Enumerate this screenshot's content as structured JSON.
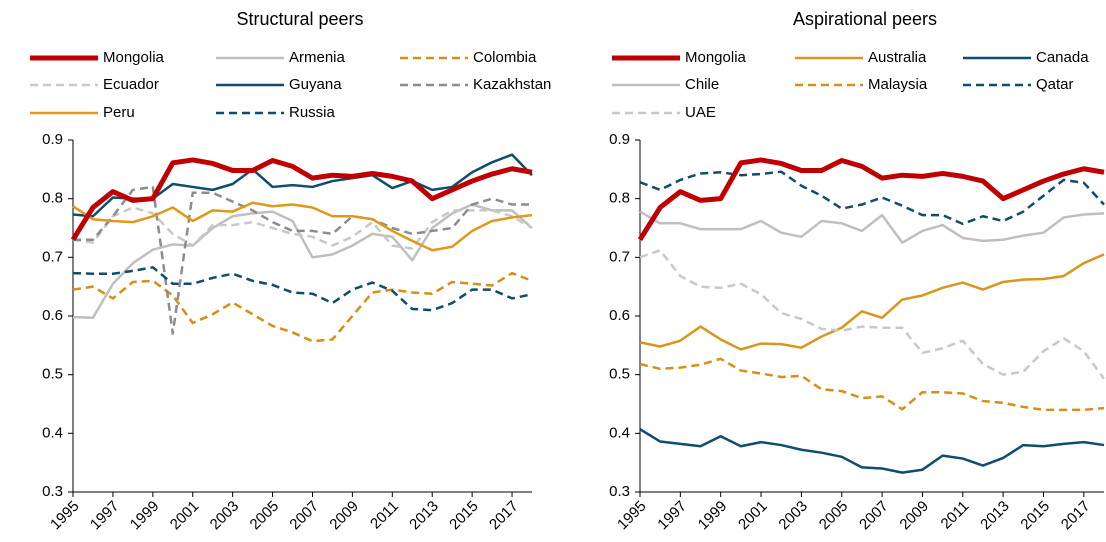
{
  "chart_data": [
    {
      "type": "line",
      "title": "Structural peers",
      "x": [
        1995,
        1996,
        1997,
        1998,
        1999,
        2000,
        2001,
        2002,
        2003,
        2004,
        2005,
        2006,
        2007,
        2008,
        2009,
        2010,
        2011,
        2012,
        2013,
        2014,
        2015,
        2016,
        2017,
        2018
      ],
      "xlim": [
        1995,
        2018
      ],
      "xticks": [
        1995,
        1997,
        1999,
        2001,
        2003,
        2005,
        2007,
        2009,
        2011,
        2013,
        2015,
        2017
      ],
      "ylim": [
        0.3,
        0.9
      ],
      "yticks": [
        0.3,
        0.4,
        0.5,
        0.6,
        0.7,
        0.8,
        0.9
      ],
      "series": [
        {
          "name": "Mongolia",
          "color": "#c00000",
          "dash": "solid",
          "linewidth": 5,
          "values": [
            0.73,
            0.785,
            0.812,
            0.797,
            0.8,
            0.861,
            0.866,
            0.86,
            0.848,
            0.848,
            0.865,
            0.855,
            0.835,
            0.84,
            0.838,
            0.843,
            0.838,
            0.83,
            0.8,
            0.815,
            0.83,
            0.842,
            0.851,
            0.845
          ]
        },
        {
          "name": "Armenia",
          "color": "#bfbfbf",
          "dash": "solid",
          "linewidth": 2.5,
          "values": [
            0.598,
            0.597,
            0.655,
            0.69,
            0.713,
            0.722,
            0.72,
            0.75,
            0.77,
            0.775,
            0.778,
            0.762,
            0.7,
            0.705,
            0.72,
            0.74,
            0.735,
            0.695,
            0.75,
            0.775,
            0.79,
            0.78,
            0.78,
            0.75
          ]
        },
        {
          "name": "Colombia",
          "color": "#d68f12",
          "dash": "dashed",
          "linewidth": 2.5,
          "values": [
            0.645,
            0.65,
            0.63,
            0.658,
            0.66,
            0.635,
            0.588,
            0.603,
            0.623,
            0.603,
            0.583,
            0.572,
            0.557,
            0.56,
            0.6,
            0.64,
            0.645,
            0.64,
            0.638,
            0.658,
            0.655,
            0.652,
            0.673,
            0.66
          ]
        },
        {
          "name": "Ecuador",
          "color": "#c8c8c8",
          "dash": "dashed",
          "linewidth": 2.5,
          "values": [
            0.73,
            0.725,
            0.77,
            0.785,
            0.775,
            0.74,
            0.72,
            0.755,
            0.755,
            0.76,
            0.75,
            0.74,
            0.735,
            0.72,
            0.735,
            0.76,
            0.72,
            0.715,
            0.76,
            0.78,
            0.78,
            0.78,
            0.77,
            0.75
          ]
        },
        {
          "name": "Guyana",
          "color": "#0e4d6e",
          "dash": "solid",
          "linewidth": 2.5,
          "values": [
            0.773,
            0.77,
            0.802,
            0.8,
            0.8,
            0.825,
            0.82,
            0.815,
            0.825,
            0.85,
            0.82,
            0.823,
            0.82,
            0.83,
            0.835,
            0.84,
            0.818,
            0.83,
            0.815,
            0.82,
            0.845,
            0.862,
            0.875,
            0.84
          ]
        },
        {
          "name": "Kazakhstan",
          "color": "#8c8c8c",
          "dash": "dashed",
          "linewidth": 2.5,
          "values": [
            0.73,
            0.73,
            0.77,
            0.815,
            0.82,
            0.57,
            0.81,
            0.81,
            0.795,
            0.78,
            0.76,
            0.745,
            0.745,
            0.74,
            0.77,
            0.765,
            0.75,
            0.74,
            0.745,
            0.75,
            0.79,
            0.8,
            0.79,
            0.79
          ]
        },
        {
          "name": "Peru",
          "color": "#e0981a",
          "dash": "solid",
          "linewidth": 2.5,
          "values": [
            0.787,
            0.765,
            0.762,
            0.76,
            0.77,
            0.785,
            0.762,
            0.78,
            0.778,
            0.793,
            0.787,
            0.79,
            0.785,
            0.77,
            0.77,
            0.765,
            0.745,
            0.728,
            0.712,
            0.718,
            0.745,
            0.762,
            0.768,
            0.772
          ]
        },
        {
          "name": "Russia",
          "color": "#0e4d6e",
          "dash": "dashed",
          "linewidth": 2.5,
          "values": [
            0.673,
            0.672,
            0.672,
            0.677,
            0.683,
            0.655,
            0.655,
            0.665,
            0.672,
            0.66,
            0.653,
            0.64,
            0.638,
            0.622,
            0.645,
            0.657,
            0.643,
            0.612,
            0.61,
            0.622,
            0.645,
            0.645,
            0.63,
            0.637
          ]
        }
      ]
    },
    {
      "type": "line",
      "title": "Aspirational peers",
      "x": [
        1995,
        1996,
        1997,
        1998,
        1999,
        2000,
        2001,
        2002,
        2003,
        2004,
        2005,
        2006,
        2007,
        2008,
        2009,
        2010,
        2011,
        2012,
        2013,
        2014,
        2015,
        2016,
        2017,
        2018
      ],
      "xlim": [
        1995,
        2018
      ],
      "xticks": [
        1995,
        1997,
        1999,
        2001,
        2003,
        2005,
        2007,
        2009,
        2011,
        2013,
        2015,
        2017
      ],
      "ylim": [
        0.3,
        0.9
      ],
      "yticks": [
        0.3,
        0.4,
        0.5,
        0.6,
        0.7,
        0.8,
        0.9
      ],
      "series": [
        {
          "name": "Mongolia",
          "color": "#c00000",
          "dash": "solid",
          "linewidth": 5,
          "values": [
            0.73,
            0.785,
            0.812,
            0.797,
            0.8,
            0.861,
            0.866,
            0.86,
            0.848,
            0.848,
            0.865,
            0.855,
            0.835,
            0.84,
            0.838,
            0.843,
            0.838,
            0.83,
            0.8,
            0.815,
            0.83,
            0.842,
            0.851,
            0.845
          ]
        },
        {
          "name": "Australia",
          "color": "#d9951c",
          "dash": "solid",
          "linewidth": 2.5,
          "values": [
            0.555,
            0.548,
            0.558,
            0.582,
            0.56,
            0.543,
            0.553,
            0.552,
            0.546,
            0.565,
            0.58,
            0.608,
            0.597,
            0.628,
            0.635,
            0.648,
            0.657,
            0.645,
            0.658,
            0.662,
            0.663,
            0.668,
            0.69,
            0.705
          ]
        },
        {
          "name": "Canada",
          "color": "#0e4d6e",
          "dash": "solid",
          "linewidth": 2.5,
          "values": [
            0.407,
            0.386,
            0.382,
            0.378,
            0.395,
            0.378,
            0.385,
            0.38,
            0.372,
            0.367,
            0.36,
            0.342,
            0.34,
            0.333,
            0.338,
            0.362,
            0.357,
            0.345,
            0.358,
            0.38,
            0.378,
            0.382,
            0.385,
            0.38
          ]
        },
        {
          "name": "Chile",
          "color": "#bfbfbf",
          "dash": "solid",
          "linewidth": 2.5,
          "values": [
            0.778,
            0.758,
            0.758,
            0.748,
            0.748,
            0.748,
            0.762,
            0.742,
            0.735,
            0.762,
            0.758,
            0.745,
            0.772,
            0.725,
            0.745,
            0.755,
            0.733,
            0.728,
            0.73,
            0.737,
            0.742,
            0.768,
            0.773,
            0.775
          ]
        },
        {
          "name": "Malaysia",
          "color": "#d68f12",
          "dash": "dashed",
          "linewidth": 2.5,
          "values": [
            0.518,
            0.51,
            0.512,
            0.517,
            0.527,
            0.507,
            0.502,
            0.496,
            0.498,
            0.475,
            0.472,
            0.46,
            0.463,
            0.441,
            0.47,
            0.47,
            0.468,
            0.455,
            0.452,
            0.445,
            0.44,
            0.44,
            0.44,
            0.443
          ]
        },
        {
          "name": "Qatar",
          "color": "#0e4d6e",
          "dash": "dashed",
          "linewidth": 2.5,
          "values": [
            0.828,
            0.815,
            0.832,
            0.843,
            0.845,
            0.84,
            0.842,
            0.846,
            0.822,
            0.805,
            0.783,
            0.79,
            0.802,
            0.788,
            0.772,
            0.772,
            0.757,
            0.77,
            0.762,
            0.778,
            0.805,
            0.832,
            0.827,
            0.79
          ]
        },
        {
          "name": "UAE",
          "color": "#c8c8c8",
          "dash": "dashed",
          "linewidth": 2.5,
          "values": [
            0.7,
            0.712,
            0.668,
            0.65,
            0.648,
            0.655,
            0.637,
            0.605,
            0.595,
            0.578,
            0.575,
            0.582,
            0.58,
            0.58,
            0.537,
            0.545,
            0.558,
            0.518,
            0.5,
            0.505,
            0.54,
            0.562,
            0.54,
            0.493
          ]
        }
      ]
    }
  ]
}
